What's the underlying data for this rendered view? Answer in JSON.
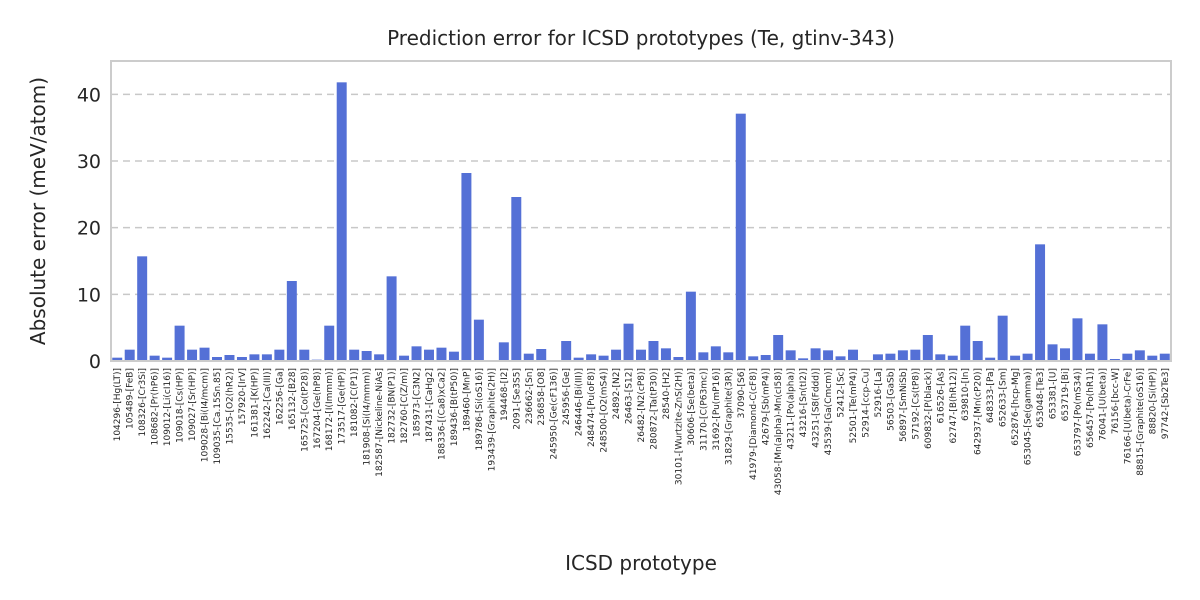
{
  "chart_data": {
    "type": "bar",
    "title": "Prediction error for ICSD prototypes (Te, gtinv-343)",
    "xlabel": "ICSD prototype",
    "ylabel": "Absolute error (meV/atom)",
    "ylim": [
      0,
      45
    ],
    "yticks": [
      0,
      10,
      20,
      30,
      40
    ],
    "grid": "y-dashed",
    "legend": "none",
    "bar_color": "#5470d6",
    "frame_color": "#cccccc",
    "grid_color": "#c8c8c8",
    "categories": [
      "104296-[Hg(LT)]",
      "105489-[FeB]",
      "108326-[Cr3Si]",
      "108682-[Pr(hP6)]",
      "109012-[Li(cI16)]",
      "109018-[Cs(HP)]",
      "109027-[Sr(HP)]",
      "109028-[Bi(I4/mcm)]",
      "109035-[Ca.15Sn.85]",
      "15535-[O2(hR2)]",
      "157920-[IrV]",
      "161381-[K(HP)]",
      "162242-[Ca(III)]",
      "162256-[Ga]",
      "165132-[B28]",
      "165725-[Co(tP28)]",
      "167204-[Ge(hP8)]",
      "168172-[I(Immm)]",
      "173517-[Ge(HP)]",
      "181082-[C(P1)]",
      "181908-[Si(I4/mmm)]",
      "182587-[Nickeline-NiAs]",
      "182732-[BN(P1)]",
      "182760-[C(Z/m)]",
      "185973-[C3N2]",
      "187431-[CaHg2]",
      "188336-[(Ca8)xCa2]",
      "189436-[B(tP50)]",
      "189460-[MnP]",
      "189786-[Si(oS16)]",
      "193439-[Graphite(2H)]",
      "194468-[I2]",
      "2091-[Se3S5]",
      "236662-[Sn]",
      "236858-[O8]",
      "245950-[Ge(cF136)]",
      "245956-[Ge]",
      "246446-[Bi(III)]",
      "248474-[Pu(oF8)]",
      "248500-[O2(mS4)]",
      "24892-[N2]",
      "26463-[S12]",
      "26482-[N2(cP8)]",
      "280872-[Ta(tP30)]",
      "28540-[H2]",
      "30101-[Wurtzite-ZnS(2H)]",
      "30606-[Se(beta)]",
      "31170-[C(P63mc)]",
      "31692-[Pu(mP16)]",
      "31829-[Graphite(3R)]",
      "37090-[S6]",
      "41979-[Diamond-C(cF8)]",
      "42679-[Sb(mP4)]",
      "43058-[Mn(alpha)-Mn(cI58)]",
      "43211-[Po(alpha)]",
      "43216-[Sn(tI2)]",
      "43251-[S8(Fddd)]",
      "43539-[Ga(Cmcm)]",
      "52412-[Sc]",
      "52501-[Te(mP4)]",
      "52914-[ccp-Cu]",
      "52916-[La]",
      "56503-[GaSb]",
      "56897-[SmNiSb]",
      "57192-[Cs(tP8)]",
      "609832-[P(black)]",
      "616526-[As]",
      "62747-[B(hR12)]",
      "639810-[In]",
      "642937-[Mn(cP20)]",
      "648333-[Pa]",
      "652633-[Sm]",
      "652876-[hcp-Mg]",
      "653045-[Se(gamma)]",
      "653048-[Te3]",
      "653381-[U]",
      "653719-[Bi]",
      "653797-[Po(mS34)]",
      "656457-[Po(hR1)]",
      "76041-[U(beta)]",
      "76156-[bcc-W]",
      "76166-[U(beta)-CrFe]",
      "88815-[Graphite(oS16)]",
      "88820-[Si(HP)]",
      "97742-[Sb2Te3]"
    ],
    "values": [
      0.5,
      1.7,
      15.7,
      0.8,
      0.5,
      5.3,
      1.7,
      2.0,
      0.6,
      0.9,
      0.6,
      1.0,
      1.0,
      1.7,
      12.0,
      1.7,
      0.2,
      5.3,
      41.8,
      1.7,
      1.5,
      1.0,
      12.7,
      0.8,
      2.2,
      1.7,
      2.0,
      1.4,
      28.2,
      6.2,
      0.1,
      2.8,
      24.6,
      1.1,
      1.8,
      0.1,
      3.0,
      0.5,
      1.0,
      0.8,
      1.7,
      5.6,
      1.7,
      3.0,
      1.9,
      0.6,
      10.4,
      1.3,
      2.2,
      1.3,
      37.1,
      0.7,
      0.9,
      3.9,
      1.6,
      0.4,
      1.9,
      1.6,
      0.7,
      1.7,
      0.1,
      1.0,
      1.1,
      1.6,
      1.7,
      3.9,
      1.0,
      0.8,
      5.3,
      3.0,
      0.5,
      6.8,
      0.8,
      1.1,
      17.5,
      2.5,
      1.9,
      6.4,
      1.1,
      5.5,
      0.3,
      1.1,
      1.6,
      0.8,
      1.1
    ]
  }
}
